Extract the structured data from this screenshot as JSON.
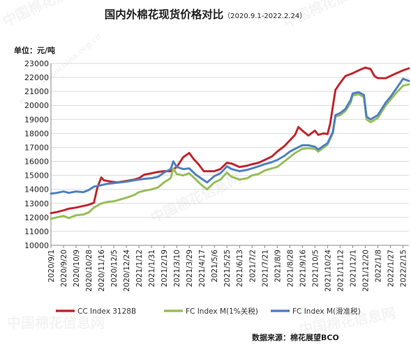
{
  "title": "国内外棉花现货价格对比",
  "title_sub": "（2020.9.1-2022.2.24）",
  "unit_label": "单位：元/吨",
  "source_label": "数据来源：棉花展望BCO",
  "watermark_text": "中国棉花信息网",
  "watermark_url": "www.cottonchina.org.cn",
  "colors": {
    "cc": "#c0272d",
    "fc1": "#97be5a",
    "fcs": "#4f80c0",
    "grid": "#d9d9d9",
    "axis": "#888888"
  },
  "chart_data": {
    "type": "line",
    "ylim": [
      10000,
      23000
    ],
    "ytick_step": 1000,
    "x_range": [
      "2020-09-01",
      "2022-02-24"
    ],
    "xtick_labels": [
      "2020/9/1",
      "2020/9/20",
      "2020/10/9",
      "2020/10/28",
      "2020/11/16",
      "2020/12/5",
      "2020/12/24",
      "2021/1/12",
      "2021/1/31",
      "2021/2/19",
      "2021/3/10",
      "2021/3/29",
      "2021/4/17",
      "2021/5/6",
      "2021/5/25",
      "2021/6/13",
      "2021/7/2",
      "2021/7/21",
      "2021/8/9",
      "2021/8/28",
      "2021/9/16",
      "2021/10/5",
      "2021/10/24",
      "2021/11/12",
      "2021/12/1",
      "2021/12/20",
      "2022/1/8",
      "2022/1/27",
      "2022/2/15"
    ],
    "grid": true,
    "legend_position": "bottom",
    "series": [
      {
        "name": "CC Index 3128B",
        "color_key": "cc",
        "points": [
          [
            "2020-09-01",
            12300
          ],
          [
            "2020-09-10",
            12380
          ],
          [
            "2020-09-20",
            12500
          ],
          [
            "2020-09-28",
            12620
          ],
          [
            "2020-10-09",
            12700
          ],
          [
            "2020-10-20",
            12820
          ],
          [
            "2020-10-28",
            12900
          ],
          [
            "2020-11-05",
            13050
          ],
          [
            "2020-11-10",
            14100
          ],
          [
            "2020-11-16",
            14850
          ],
          [
            "2020-11-20",
            14650
          ],
          [
            "2020-12-01",
            14550
          ],
          [
            "2020-12-10",
            14500
          ],
          [
            "2020-12-24",
            14600
          ],
          [
            "2021-01-05",
            14700
          ],
          [
            "2021-01-12",
            14800
          ],
          [
            "2021-01-20",
            15050
          ],
          [
            "2021-01-31",
            15150
          ],
          [
            "2021-02-10",
            15250
          ],
          [
            "2021-02-19",
            15300
          ],
          [
            "2021-03-01",
            15300
          ],
          [
            "2021-03-10",
            15600
          ],
          [
            "2021-03-20",
            16300
          ],
          [
            "2021-03-29",
            16600
          ],
          [
            "2021-04-05",
            16150
          ],
          [
            "2021-04-12",
            15800
          ],
          [
            "2021-04-20",
            15300
          ],
          [
            "2021-05-06",
            15300
          ],
          [
            "2021-05-15",
            15450
          ],
          [
            "2021-05-25",
            15900
          ],
          [
            "2021-06-01",
            15850
          ],
          [
            "2021-06-13",
            15600
          ],
          [
            "2021-06-25",
            15700
          ],
          [
            "2021-07-02",
            15800
          ],
          [
            "2021-07-12",
            15900
          ],
          [
            "2021-07-21",
            16100
          ],
          [
            "2021-08-01",
            16350
          ],
          [
            "2021-08-09",
            16700
          ],
          [
            "2021-08-20",
            17100
          ],
          [
            "2021-08-28",
            17500
          ],
          [
            "2021-09-05",
            17900
          ],
          [
            "2021-09-10",
            18450
          ],
          [
            "2021-09-16",
            18200
          ],
          [
            "2021-09-25",
            17850
          ],
          [
            "2021-10-05",
            18200
          ],
          [
            "2021-10-10",
            17900
          ],
          [
            "2021-10-18",
            18000
          ],
          [
            "2021-10-24",
            17950
          ],
          [
            "2021-10-28",
            18700
          ],
          [
            "2021-11-05",
            21100
          ],
          [
            "2021-11-12",
            21600
          ],
          [
            "2021-11-20",
            22100
          ],
          [
            "2021-12-01",
            22300
          ],
          [
            "2021-12-10",
            22500
          ],
          [
            "2021-12-20",
            22700
          ],
          [
            "2021-12-28",
            22600
          ],
          [
            "2022-01-03",
            22100
          ],
          [
            "2022-01-08",
            21950
          ],
          [
            "2022-01-20",
            21950
          ],
          [
            "2022-01-27",
            22100
          ],
          [
            "2022-02-05",
            22300
          ],
          [
            "2022-02-15",
            22500
          ],
          [
            "2022-02-24",
            22650
          ]
        ]
      },
      {
        "name": "FC Index M(1%关税)",
        "color_key": "fc1",
        "points": [
          [
            "2020-09-01",
            11900
          ],
          [
            "2020-09-10",
            12000
          ],
          [
            "2020-09-20",
            12100
          ],
          [
            "2020-09-28",
            11950
          ],
          [
            "2020-10-09",
            12150
          ],
          [
            "2020-10-20",
            12200
          ],
          [
            "2020-10-28",
            12350
          ],
          [
            "2020-11-05",
            12700
          ],
          [
            "2020-11-16",
            13000
          ],
          [
            "2020-11-25",
            13100
          ],
          [
            "2020-12-05",
            13150
          ],
          [
            "2020-12-24",
            13400
          ],
          [
            "2021-01-05",
            13600
          ],
          [
            "2021-01-12",
            13800
          ],
          [
            "2021-01-20",
            13900
          ],
          [
            "2021-01-31",
            14000
          ],
          [
            "2021-02-10",
            14150
          ],
          [
            "2021-02-19",
            14500
          ],
          [
            "2021-03-01",
            14800
          ],
          [
            "2021-03-05",
            15500
          ],
          [
            "2021-03-10",
            15100
          ],
          [
            "2021-03-20",
            15000
          ],
          [
            "2021-03-29",
            15150
          ],
          [
            "2021-04-08",
            14700
          ],
          [
            "2021-04-17",
            14300
          ],
          [
            "2021-04-25",
            14000
          ],
          [
            "2021-05-06",
            14500
          ],
          [
            "2021-05-15",
            14700
          ],
          [
            "2021-05-25",
            15200
          ],
          [
            "2021-06-01",
            14900
          ],
          [
            "2021-06-13",
            14700
          ],
          [
            "2021-06-25",
            14800
          ],
          [
            "2021-07-02",
            15000
          ],
          [
            "2021-07-12",
            15100
          ],
          [
            "2021-07-21",
            15350
          ],
          [
            "2021-08-01",
            15500
          ],
          [
            "2021-08-09",
            15600
          ],
          [
            "2021-08-20",
            16000
          ],
          [
            "2021-08-28",
            16300
          ],
          [
            "2021-09-05",
            16600
          ],
          [
            "2021-09-16",
            16900
          ],
          [
            "2021-09-25",
            16950
          ],
          [
            "2021-10-05",
            16900
          ],
          [
            "2021-10-10",
            16700
          ],
          [
            "2021-10-24",
            17200
          ],
          [
            "2021-11-01",
            18000
          ],
          [
            "2021-11-05",
            19200
          ],
          [
            "2021-11-12",
            19300
          ],
          [
            "2021-11-20",
            19600
          ],
          [
            "2021-11-28",
            20200
          ],
          [
            "2021-12-01",
            20700
          ],
          [
            "2021-12-10",
            20800
          ],
          [
            "2021-12-18",
            20600
          ],
          [
            "2021-12-22",
            19000
          ],
          [
            "2021-12-28",
            18800
          ],
          [
            "2022-01-08",
            19100
          ],
          [
            "2022-01-20",
            20000
          ],
          [
            "2022-01-27",
            20400
          ],
          [
            "2022-02-05",
            20900
          ],
          [
            "2022-02-15",
            21400
          ],
          [
            "2022-02-24",
            21500
          ]
        ]
      },
      {
        "name": "FC Index M(滑准税)",
        "color_key": "fcs",
        "points": [
          [
            "2020-09-01",
            13700
          ],
          [
            "2020-09-10",
            13750
          ],
          [
            "2020-09-20",
            13850
          ],
          [
            "2020-09-28",
            13750
          ],
          [
            "2020-10-09",
            13850
          ],
          [
            "2020-10-20",
            13800
          ],
          [
            "2020-10-28",
            13950
          ],
          [
            "2020-11-05",
            14200
          ],
          [
            "2020-11-16",
            14300
          ],
          [
            "2020-11-25",
            14400
          ],
          [
            "2020-12-05",
            14450
          ],
          [
            "2020-12-24",
            14550
          ],
          [
            "2021-01-05",
            14650
          ],
          [
            "2021-01-12",
            14700
          ],
          [
            "2021-01-20",
            14750
          ],
          [
            "2021-01-31",
            14800
          ],
          [
            "2021-02-10",
            14900
          ],
          [
            "2021-02-19",
            15200
          ],
          [
            "2021-03-01",
            15450
          ],
          [
            "2021-03-05",
            16000
          ],
          [
            "2021-03-10",
            15600
          ],
          [
            "2021-03-20",
            15450
          ],
          [
            "2021-03-29",
            15500
          ],
          [
            "2021-04-08",
            15050
          ],
          [
            "2021-04-17",
            14750
          ],
          [
            "2021-04-25",
            14500
          ],
          [
            "2021-05-06",
            14950
          ],
          [
            "2021-05-15",
            15150
          ],
          [
            "2021-05-25",
            15650
          ],
          [
            "2021-06-01",
            15450
          ],
          [
            "2021-06-13",
            15300
          ],
          [
            "2021-06-25",
            15400
          ],
          [
            "2021-07-02",
            15500
          ],
          [
            "2021-07-12",
            15650
          ],
          [
            "2021-07-21",
            15800
          ],
          [
            "2021-08-01",
            15950
          ],
          [
            "2021-08-09",
            16100
          ],
          [
            "2021-08-20",
            16400
          ],
          [
            "2021-08-28",
            16700
          ],
          [
            "2021-09-05",
            16900
          ],
          [
            "2021-09-16",
            17150
          ],
          [
            "2021-09-25",
            17150
          ],
          [
            "2021-10-05",
            17050
          ],
          [
            "2021-10-10",
            16850
          ],
          [
            "2021-10-24",
            17300
          ],
          [
            "2021-11-01",
            18100
          ],
          [
            "2021-11-05",
            19300
          ],
          [
            "2021-11-12",
            19450
          ],
          [
            "2021-11-20",
            19750
          ],
          [
            "2021-11-28",
            20400
          ],
          [
            "2021-12-01",
            20850
          ],
          [
            "2021-12-10",
            20950
          ],
          [
            "2021-12-18",
            20750
          ],
          [
            "2021-12-22",
            19200
          ],
          [
            "2021-12-28",
            19000
          ],
          [
            "2022-01-08",
            19300
          ],
          [
            "2022-01-20",
            20200
          ],
          [
            "2022-01-27",
            20600
          ],
          [
            "2022-02-05",
            21200
          ],
          [
            "2022-02-15",
            21900
          ],
          [
            "2022-02-24",
            21750
          ]
        ]
      }
    ]
  }
}
